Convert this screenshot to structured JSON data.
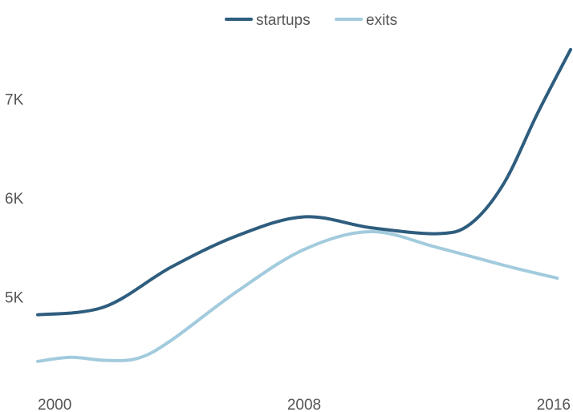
{
  "chart_data": {
    "type": "line",
    "title": "",
    "xlabel": "",
    "ylabel": "",
    "x_ticks": [
      {
        "value": 2000,
        "label": "2000"
      },
      {
        "value": 2008,
        "label": "2008"
      },
      {
        "value": 2016,
        "label": "2016"
      }
    ],
    "y_ticks": [
      {
        "value": 5000,
        "label": "5K"
      },
      {
        "value": 6000,
        "label": "6K"
      },
      {
        "value": 7000,
        "label": "7K"
      }
    ],
    "xlim": [
      2000,
      2016
    ],
    "ylim": [
      4000,
      8000
    ],
    "grid": false,
    "legend_position": "top-center",
    "series": [
      {
        "name": "startups",
        "color": "#2e5d7e",
        "points": [
          [
            2000,
            4820
          ],
          [
            2002,
            4900
          ],
          [
            2004,
            5300
          ],
          [
            2006,
            5620
          ],
          [
            2008,
            5810
          ],
          [
            2010,
            5700
          ],
          [
            2012,
            5640
          ],
          [
            2013,
            5740
          ],
          [
            2014,
            6150
          ],
          [
            2015,
            6850
          ],
          [
            2016,
            7500
          ]
        ]
      },
      {
        "name": "exits",
        "color": "#a2cbdd",
        "points": [
          [
            2000,
            4350
          ],
          [
            2001,
            4390
          ],
          [
            2002,
            4360
          ],
          [
            2003,
            4380
          ],
          [
            2004,
            4560
          ],
          [
            2006,
            5060
          ],
          [
            2008,
            5480
          ],
          [
            2010,
            5660
          ],
          [
            2012,
            5500
          ],
          [
            2014,
            5320
          ],
          [
            2015.6,
            5190
          ]
        ]
      }
    ]
  }
}
